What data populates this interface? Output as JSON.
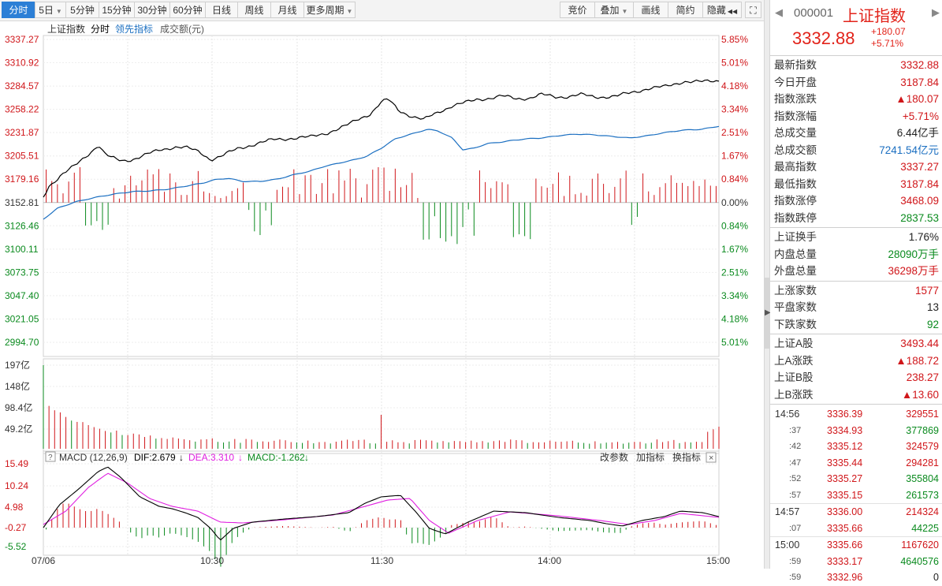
{
  "toolbar": {
    "left": [
      {
        "label": "分时",
        "active": true,
        "dropdown": false
      },
      {
        "label": "5日",
        "active": false,
        "dropdown": true
      },
      {
        "label": "5分钟",
        "active": false,
        "dropdown": false
      },
      {
        "label": "15分钟",
        "active": false,
        "dropdown": false
      },
      {
        "label": "30分钟",
        "active": false,
        "dropdown": false
      },
      {
        "label": "60分钟",
        "active": false,
        "dropdown": false
      },
      {
        "label": "日线",
        "active": false,
        "dropdown": false
      },
      {
        "label": "周线",
        "active": false,
        "dropdown": false
      },
      {
        "label": "月线",
        "active": false,
        "dropdown": false
      },
      {
        "label": "更多周期",
        "active": false,
        "dropdown": true
      }
    ],
    "right": [
      {
        "label": "竞价",
        "dropdown": false
      },
      {
        "label": "叠加",
        "dropdown": true
      },
      {
        "label": "画线",
        "dropdown": false
      },
      {
        "label": "简约",
        "dropdown": false
      },
      {
        "label": "隐藏",
        "dropdown": false,
        "suffix": "◀◀"
      }
    ]
  },
  "chart_header": {
    "index_name": "上证指数",
    "mode": "分时",
    "leading_indicator": "领先指标",
    "volume_label": "成交额(元)"
  },
  "price_axis": [
    "3337.27",
    "3310.92",
    "3284.57",
    "3258.22",
    "3231.87",
    "3205.51",
    "3179.16",
    "3152.81",
    "3126.46",
    "3100.11",
    "3073.75",
    "3047.40",
    "3021.05",
    "2994.70"
  ],
  "pct_axis": [
    "5.85%",
    "5.01%",
    "4.18%",
    "3.34%",
    "2.51%",
    "1.67%",
    "0.84%",
    "0.00%",
    "0.84%",
    "1.67%",
    "2.51%",
    "3.34%",
    "4.18%",
    "5.01%"
  ],
  "pct_axis_colors": [
    "red",
    "red",
    "red",
    "red",
    "red",
    "red",
    "red",
    "neutral",
    "green",
    "green",
    "green",
    "green",
    "green",
    "green"
  ],
  "volume_axis": [
    "197亿",
    "148亿",
    "98.4亿",
    "49.2亿"
  ],
  "macd": {
    "name": "MACD (12,26,9)",
    "dif": "DIF:2.679",
    "dea": "DEA:3.310",
    "macd": "MACD:-1.262",
    "arrow": "↓",
    "change_params": "改参数",
    "add_indicator": "加指标",
    "switch_indicator": "换指标",
    "axis": [
      "15.49",
      "10.24",
      "4.98",
      "-0.27",
      "-5.52"
    ]
  },
  "time_axis": [
    "07/06",
    "10:30",
    "11:30",
    "14:00",
    "15:00"
  ],
  "colors": {
    "up": "#d0161a",
    "down": "#0a8a1e",
    "avg": "#1b6fc1",
    "price": "#000000",
    "dea": "#e020e0",
    "accent": "#2c7fd6"
  },
  "quote": {
    "code": "000001",
    "name": "上证指数",
    "price": "3332.88",
    "change": "+180.07",
    "change_pct": "+5.71%",
    "sections": [
      [
        {
          "label": "最新指数",
          "value": "3332.88",
          "color": "red"
        },
        {
          "label": "今日开盘",
          "value": "3187.84",
          "color": "red"
        },
        {
          "label": "指数涨跌",
          "value": "▲180.07",
          "color": "red"
        },
        {
          "label": "指数涨幅",
          "value": "+5.71%",
          "color": "red"
        },
        {
          "label": "总成交量",
          "value": "6.44亿手",
          "color": "dark"
        },
        {
          "label": "总成交额",
          "value": "7241.54亿元",
          "color": "blue"
        },
        {
          "label": "最高指数",
          "value": "3337.27",
          "color": "red"
        },
        {
          "label": "最低指数",
          "value": "3187.84",
          "color": "red"
        },
        {
          "label": "指数涨停",
          "value": "3468.09",
          "color": "red"
        },
        {
          "label": "指数跌停",
          "value": "2837.53",
          "color": "green"
        }
      ],
      [
        {
          "label": "上证换手",
          "value": "1.76%",
          "color": "dark"
        },
        {
          "label": "内盘总量",
          "value": "28090万手",
          "color": "green"
        },
        {
          "label": "外盘总量",
          "value": "36298万手",
          "color": "red"
        }
      ],
      [
        {
          "label": "上涨家数",
          "value": "1577",
          "color": "red"
        },
        {
          "label": "平盘家数",
          "value": "13",
          "color": "dark"
        },
        {
          "label": "下跌家数",
          "value": "92",
          "color": "green"
        }
      ],
      [
        {
          "label": "上证A股",
          "value": "3493.44",
          "color": "red"
        },
        {
          "label": "上A涨跌",
          "value": "▲188.72",
          "color": "red"
        },
        {
          "label": "上证B股",
          "value": "238.27",
          "color": "red"
        },
        {
          "label": "上B涨跌",
          "value": "▲13.60",
          "color": "red"
        }
      ]
    ],
    "ticks": [
      {
        "time": "14:56",
        "small": false,
        "price": "3336.39",
        "vol": "329551",
        "color": "red"
      },
      {
        "time": ":37",
        "small": true,
        "price": "3334.93",
        "vol": "377869",
        "color": "green"
      },
      {
        "time": ":42",
        "small": true,
        "price": "3335.12",
        "vol": "324579",
        "color": "red"
      },
      {
        "time": ":47",
        "small": true,
        "price": "3335.44",
        "vol": "294281",
        "color": "red"
      },
      {
        "time": ":52",
        "small": true,
        "price": "3335.27",
        "vol": "355804",
        "color": "green"
      },
      {
        "time": ":57",
        "small": true,
        "price": "3335.15",
        "vol": "261573",
        "color": "green"
      },
      {
        "time": "14:57",
        "small": false,
        "price": "3336.00",
        "vol": "214324",
        "color": "red"
      },
      {
        "time": ":07",
        "small": true,
        "price": "3335.66",
        "vol": "44225",
        "color": "green"
      },
      {
        "time": "15:00",
        "small": false,
        "price": "3335.66",
        "vol": "1167620",
        "color": "red"
      },
      {
        "time": ":59",
        "small": true,
        "price": "3333.17",
        "vol": "4640576",
        "color": "green"
      },
      {
        "time": ":59",
        "small": true,
        "price": "3332.96",
        "vol": "0",
        "color": "dark"
      }
    ]
  }
}
